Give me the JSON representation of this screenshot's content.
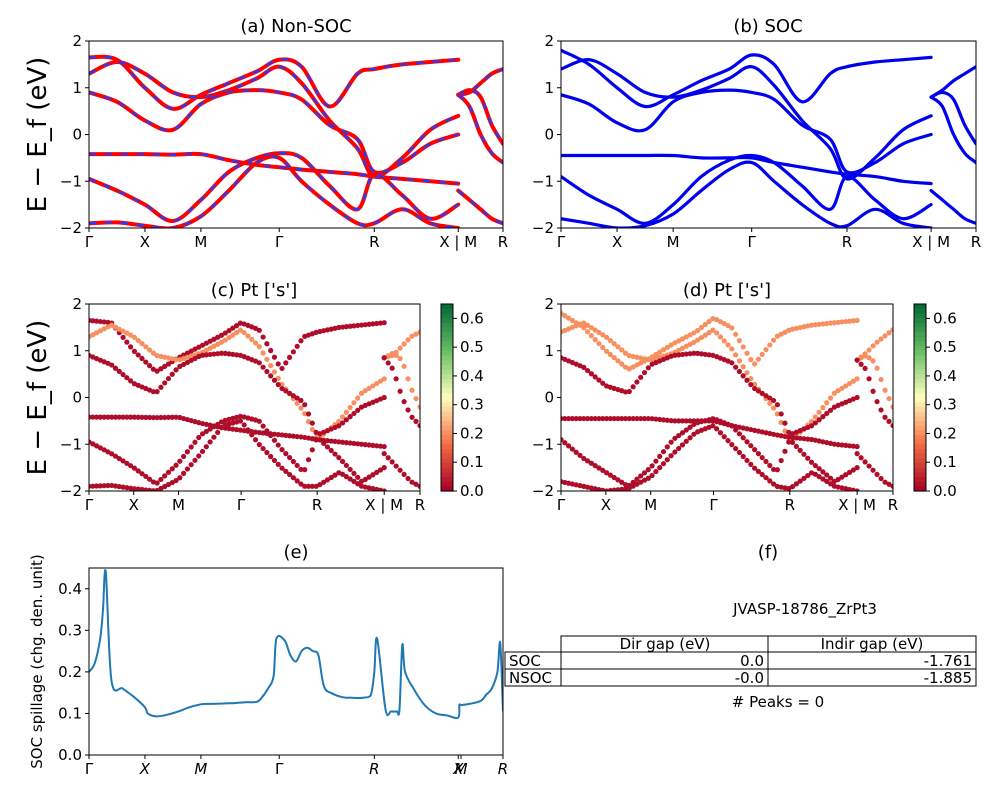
{
  "chart_data": [
    {
      "type": "line",
      "panel": "a",
      "title": "(a) Non-SOC",
      "ylabel": "E − E_f (eV)",
      "ylim": [
        -2,
        2
      ],
      "yticks": [
        "−2",
        "−1",
        "0",
        "1",
        "2"
      ],
      "xticks": [
        "Γ",
        "X",
        "M",
        "Γ",
        "R",
        "X | M",
        "R"
      ],
      "xtick_positions": [
        0,
        1,
        2,
        3.4,
        5.1,
        6.6,
        7.4
      ],
      "colors": {
        "band": "#ff0000",
        "overlay": "#1f3fff"
      },
      "bands": [
        {
          "x": [
            0,
            0.5,
            1,
            1.5,
            2,
            2.5,
            3,
            3.4,
            3.8,
            4.3,
            4.8,
            5.1,
            5.6,
            6.1,
            6.6
          ],
          "y": [
            1.65,
            1.6,
            1.0,
            0.55,
            0.85,
            1.1,
            1.35,
            1.6,
            1.45,
            0.6,
            1.3,
            1.4,
            1.5,
            1.55,
            1.6
          ]
        },
        {
          "x": [
            0,
            0.5,
            1,
            1.5,
            2,
            2.5,
            3,
            3.4,
            3.8,
            4.3,
            4.8,
            5.1,
            5.6,
            6.1,
            6.6
          ],
          "y": [
            1.3,
            1.55,
            1.3,
            0.9,
            0.8,
            0.95,
            1.2,
            1.45,
            1.1,
            0.3,
            -0.3,
            -0.9,
            -0.5,
            0.1,
            0.4
          ]
        },
        {
          "x": [
            0,
            0.5,
            1,
            1.5,
            2,
            2.5,
            3,
            3.4,
            3.8,
            4.3,
            4.8,
            5.1,
            5.6,
            6.1,
            6.6
          ],
          "y": [
            0.9,
            0.7,
            0.3,
            0.1,
            0.65,
            0.9,
            0.95,
            0.9,
            0.75,
            0.2,
            -0.1,
            -0.8,
            -0.6,
            -0.2,
            0.0
          ]
        },
        {
          "x": [
            0,
            0.5,
            1,
            1.5,
            2,
            2.5,
            3,
            3.4,
            3.8,
            4.3,
            4.8,
            5.1,
            5.6,
            6.1,
            6.6
          ],
          "y": [
            -0.42,
            -0.42,
            -0.42,
            -0.43,
            -0.42,
            -0.55,
            -0.65,
            -0.7,
            -0.75,
            -0.8,
            -0.85,
            -0.9,
            -0.95,
            -1.0,
            -1.05
          ]
        },
        {
          "x": [
            0,
            0.5,
            1,
            1.5,
            2,
            2.5,
            3,
            3.4,
            3.8,
            4.3,
            4.8,
            5.1,
            5.6,
            6.1,
            6.6
          ],
          "y": [
            -0.95,
            -1.2,
            -1.5,
            -1.85,
            -1.4,
            -0.8,
            -0.5,
            -0.4,
            -0.5,
            -1.1,
            -1.6,
            -0.85,
            -1.3,
            -1.8,
            -1.5
          ]
        },
        {
          "x": [
            0,
            0.5,
            1,
            1.5,
            2,
            2.5,
            3,
            3.4,
            3.8,
            4.3,
            4.8,
            5.1,
            5.6,
            6.1,
            6.6
          ],
          "y": [
            -1.9,
            -1.88,
            -1.95,
            -2.0,
            -1.75,
            -1.2,
            -0.6,
            -0.5,
            -1.0,
            -1.5,
            -1.9,
            -1.9,
            -1.6,
            -1.9,
            -2.0
          ]
        },
        {
          "x": [
            6.6,
            6.8,
            7.0,
            7.2,
            7.4
          ],
          "y": [
            0.85,
            0.9,
            1.1,
            1.3,
            1.4
          ]
        },
        {
          "x": [
            6.6,
            6.8,
            7.0,
            7.2,
            7.4
          ],
          "y": [
            0.85,
            0.95,
            0.8,
            0.2,
            -0.2
          ]
        },
        {
          "x": [
            6.6,
            6.8,
            7.0,
            7.2,
            7.4
          ],
          "y": [
            0.85,
            0.6,
            0.0,
            -0.4,
            -0.6
          ]
        },
        {
          "x": [
            6.6,
            6.8,
            7.0,
            7.2,
            7.4
          ],
          "y": [
            -1.2,
            -1.4,
            -1.6,
            -1.8,
            -1.9
          ]
        }
      ]
    },
    {
      "type": "line",
      "panel": "b",
      "title": "(b) SOC",
      "ylim": [
        -2,
        2
      ],
      "yticks": [
        "−2",
        "−1",
        "0",
        "1",
        "2"
      ],
      "xticks": [
        "Γ",
        "X",
        "M",
        "Γ",
        "R",
        "X | M",
        "R"
      ],
      "xtick_positions": [
        0,
        1,
        2,
        3.4,
        5.1,
        6.6,
        7.4
      ],
      "colors": {
        "band": "#0000ee"
      },
      "bands": [
        {
          "x": [
            0,
            0.5,
            1,
            1.5,
            2,
            2.5,
            3,
            3.4,
            3.8,
            4.3,
            4.8,
            5.1,
            5.6,
            6.1,
            6.6
          ],
          "y": [
            1.8,
            1.5,
            1.0,
            0.6,
            0.85,
            1.15,
            1.4,
            1.7,
            1.5,
            0.7,
            1.3,
            1.45,
            1.55,
            1.6,
            1.65
          ]
        },
        {
          "x": [
            0,
            0.5,
            1,
            1.5,
            2,
            2.5,
            3,
            3.4,
            3.8,
            4.3,
            4.8,
            5.1,
            5.6,
            6.1,
            6.6
          ],
          "y": [
            1.4,
            1.6,
            1.3,
            0.9,
            0.8,
            0.95,
            1.2,
            1.45,
            1.05,
            0.3,
            -0.3,
            -0.95,
            -0.5,
            0.1,
            0.4
          ]
        },
        {
          "x": [
            0,
            0.5,
            1,
            1.5,
            2,
            2.5,
            3,
            3.4,
            3.8,
            4.3,
            4.8,
            5.1,
            5.6,
            6.1,
            6.6
          ],
          "y": [
            0.85,
            0.65,
            0.25,
            0.1,
            0.7,
            0.9,
            0.95,
            0.9,
            0.75,
            0.2,
            -0.1,
            -0.8,
            -0.6,
            -0.2,
            0.0
          ]
        },
        {
          "x": [
            0,
            0.5,
            1,
            1.5,
            2,
            2.5,
            3,
            3.4,
            3.8,
            4.3,
            4.8,
            5.1,
            5.6,
            6.1,
            6.6
          ],
          "y": [
            -0.45,
            -0.45,
            -0.45,
            -0.45,
            -0.45,
            -0.5,
            -0.5,
            -0.5,
            -0.6,
            -0.7,
            -0.8,
            -0.85,
            -0.9,
            -1.0,
            -1.05
          ]
        },
        {
          "x": [
            0,
            0.5,
            1,
            1.5,
            2,
            2.5,
            3,
            3.4,
            3.8,
            4.3,
            4.8,
            5.1,
            5.6,
            6.1,
            6.6
          ],
          "y": [
            -0.9,
            -1.3,
            -1.6,
            -1.9,
            -1.5,
            -0.9,
            -0.55,
            -0.45,
            -0.6,
            -1.1,
            -1.6,
            -0.9,
            -1.4,
            -1.8,
            -1.5
          ]
        },
        {
          "x": [
            0,
            0.5,
            1,
            1.5,
            2,
            2.5,
            3,
            3.4,
            3.8,
            4.3,
            4.8,
            5.1,
            5.6,
            6.1,
            6.6
          ],
          "y": [
            -1.8,
            -1.9,
            -2.0,
            -1.95,
            -1.7,
            -1.2,
            -0.75,
            -0.6,
            -1.0,
            -1.5,
            -1.9,
            -1.95,
            -1.6,
            -1.9,
            -2.0
          ]
        },
        {
          "x": [
            6.6,
            6.8,
            7.0,
            7.2,
            7.4
          ],
          "y": [
            0.8,
            0.95,
            1.15,
            1.3,
            1.45
          ]
        },
        {
          "x": [
            6.6,
            6.8,
            7.0,
            7.2,
            7.4
          ],
          "y": [
            0.8,
            0.9,
            0.75,
            0.2,
            -0.2
          ]
        },
        {
          "x": [
            6.6,
            6.8,
            7.0,
            7.2,
            7.4
          ],
          "y": [
            0.8,
            0.6,
            0.0,
            -0.4,
            -0.6
          ]
        },
        {
          "x": [
            6.6,
            6.8,
            7.0,
            7.2,
            7.4
          ],
          "y": [
            -1.2,
            -1.4,
            -1.6,
            -1.8,
            -1.9
          ]
        }
      ]
    },
    {
      "type": "scatter",
      "panel": "c",
      "title": "(c)  Pt ['s']",
      "ylabel": "E − E_f (eV)",
      "ylim": [
        -2,
        2
      ],
      "yticks": [
        "−2",
        "−1",
        "0",
        "1",
        "2"
      ],
      "xticks": [
        "Γ",
        "X",
        "M",
        "Γ",
        "R",
        "X | M",
        "R"
      ],
      "xtick_positions": [
        0,
        1,
        2,
        3.4,
        5.1,
        6.6,
        7.4
      ],
      "colorbar": {
        "min": 0.0,
        "max": 0.65,
        "ticks": [
          "0.0",
          "0.1",
          "0.2",
          "0.3",
          "0.4",
          "0.5",
          "0.6"
        ],
        "colormap": "RdYlGn"
      },
      "weight_bands": [
        0,
        1,
        0,
        0,
        0,
        0,
        1,
        1,
        0,
        0
      ],
      "weight_values": [
        0.02,
        0.2,
        0.02,
        0.02,
        0.02,
        0.02,
        0.2,
        0.2,
        0.02,
        0.02
      ]
    },
    {
      "type": "scatter",
      "panel": "d",
      "title": "(d) Pt ['s']",
      "ylim": [
        -2,
        2
      ],
      "yticks": [
        "−2",
        "−1",
        "0",
        "1",
        "2"
      ],
      "xticks": [
        "Γ",
        "X",
        "M",
        "Γ",
        "R",
        "X | M",
        "R"
      ],
      "xtick_positions": [
        0,
        1,
        2,
        3.4,
        5.1,
        6.6,
        7.4
      ],
      "colorbar": {
        "min": 0.0,
        "max": 0.65,
        "ticks": [
          "0.0",
          "0.1",
          "0.2",
          "0.3",
          "0.4",
          "0.5",
          "0.6"
        ],
        "colormap": "RdYlGn"
      },
      "weight_values": [
        0.2,
        0.2,
        0.02,
        0.02,
        0.02,
        0.02,
        0.2,
        0.2,
        0.02,
        0.02
      ]
    },
    {
      "type": "line",
      "panel": "e",
      "title": "(e)",
      "ylabel": "SOC spillage (chg. den. unit)",
      "ylim": [
        0,
        0.45
      ],
      "yticks": [
        "0.0",
        "0.1",
        "0.2",
        "0.3",
        "0.4"
      ],
      "xticks": [
        "Γ",
        "X",
        "M",
        "Γ",
        "R",
        "X",
        "M",
        "R"
      ],
      "xtick_positions": [
        0,
        1,
        2,
        3.4,
        5.1,
        6.6,
        6.65,
        7.4
      ],
      "color": "#1f77b4",
      "x": [
        0,
        0.1,
        0.2,
        0.25,
        0.3,
        0.4,
        0.6,
        0.8,
        1.0,
        1.05,
        1.2,
        1.4,
        1.6,
        1.8,
        2.0,
        2.2,
        2.4,
        2.6,
        2.8,
        3.0,
        3.1,
        3.2,
        3.3,
        3.35,
        3.5,
        3.6,
        3.7,
        3.8,
        3.9,
        4.0,
        4.1,
        4.2,
        4.35,
        4.5,
        4.6,
        4.7,
        4.8,
        4.9,
        5.0,
        5.05,
        5.1,
        5.15,
        5.3,
        5.4,
        5.5,
        5.55,
        5.6,
        5.65,
        5.8,
        6.0,
        6.2,
        6.4,
        6.6,
        6.62,
        6.65,
        6.8,
        7.0,
        7.1,
        7.2,
        7.3,
        7.35,
        7.4
      ],
      "y": [
        0.2,
        0.22,
        0.28,
        0.35,
        0.44,
        0.18,
        0.16,
        0.14,
        0.115,
        0.1,
        0.093,
        0.097,
        0.105,
        0.115,
        0.122,
        0.123,
        0.124,
        0.125,
        0.127,
        0.128,
        0.14,
        0.16,
        0.19,
        0.28,
        0.275,
        0.24,
        0.225,
        0.25,
        0.258,
        0.25,
        0.24,
        0.165,
        0.148,
        0.14,
        0.138,
        0.138,
        0.137,
        0.138,
        0.14,
        0.15,
        0.2,
        0.28,
        0.11,
        0.105,
        0.105,
        0.11,
        0.265,
        0.2,
        0.16,
        0.12,
        0.1,
        0.095,
        0.09,
        0.12,
        0.12,
        0.123,
        0.13,
        0.145,
        0.16,
        0.2,
        0.27,
        0.105
      ]
    }
  ],
  "table_panel": {
    "title": "(f)",
    "subtitle": "JVASP-18786_ZrPt3",
    "columns": [
      "Dir gap (eV)",
      "Indir gap (eV)"
    ],
    "rows": [
      {
        "label": "SOC",
        "dir": "0.0",
        "indir": "-1.761"
      },
      {
        "label": "NSOC",
        "dir": "-0.0",
        "indir": "-1.885"
      }
    ],
    "footer": "# Peaks = 0"
  }
}
